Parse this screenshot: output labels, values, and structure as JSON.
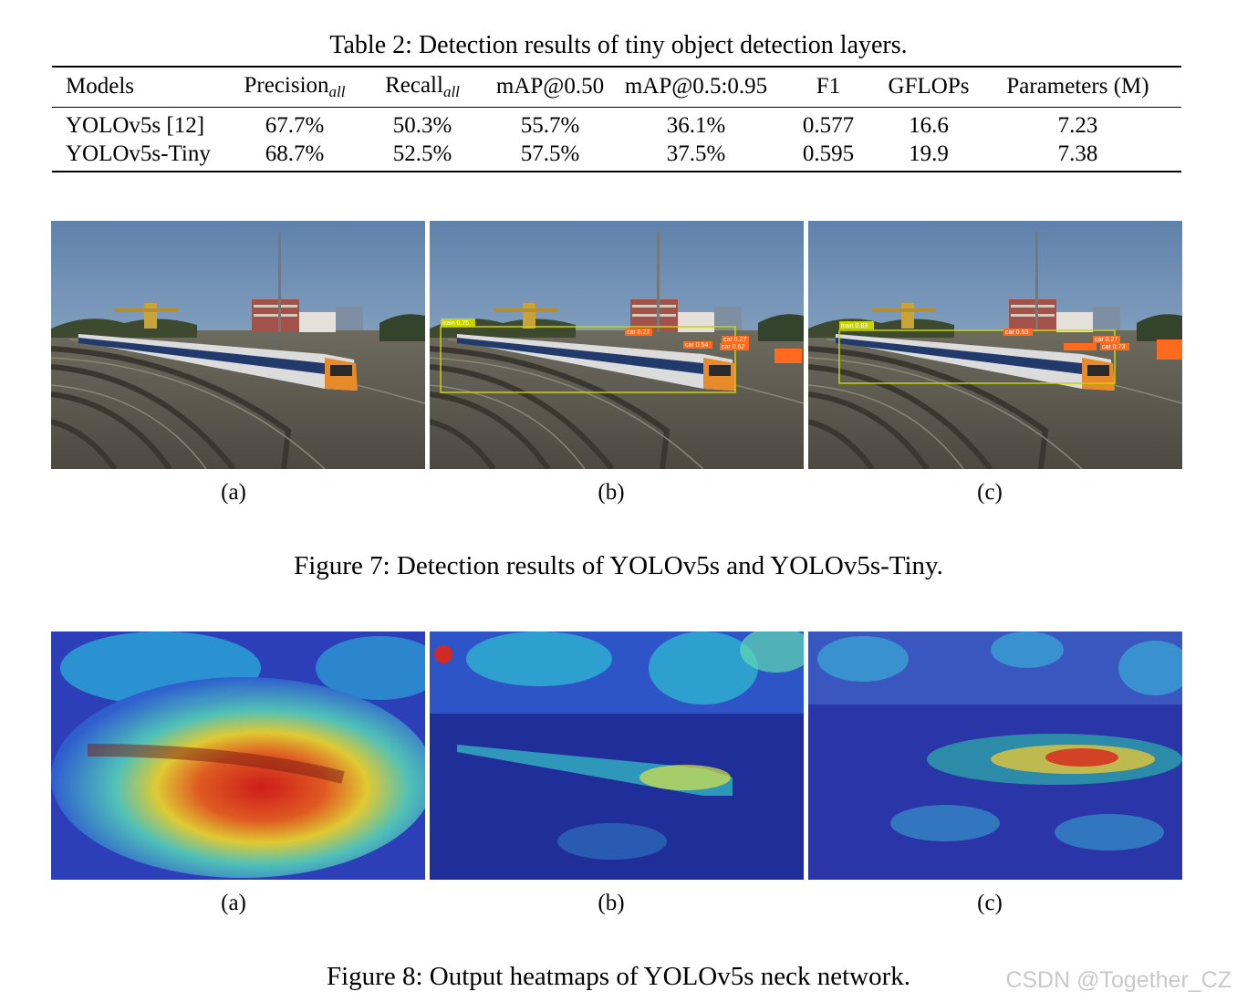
{
  "table": {
    "caption": "Table 2: Detection results of tiny object detection layers.",
    "headers": {
      "models": "Models",
      "precision": "Precision",
      "precision_sub": "all",
      "recall": "Recall",
      "recall_sub": "all",
      "map50": "mAP@0.50",
      "map5095": "mAP@0.5:0.95",
      "f1": "F1",
      "gflops": "GFLOPs",
      "params": "Parameters (M)"
    },
    "rows": [
      {
        "model": "YOLOv5s [12]",
        "precision": "67.7%",
        "recall": "50.3%",
        "map50": "55.7%",
        "map5095": "36.1%",
        "f1": "0.577",
        "gflops": "16.6",
        "params": "7.23"
      },
      {
        "model": "YOLOv5s-Tiny",
        "precision": "68.7%",
        "recall": "52.5%",
        "map50": "57.5%",
        "map5095": "37.5%",
        "f1": "0.595",
        "gflops": "19.9",
        "params": "7.38"
      }
    ]
  },
  "figure7": {
    "caption": "Figure 7: Detection results of YOLOv5s and YOLOv5s-Tiny.",
    "subfig_labels": [
      "(a)",
      "(b)",
      "(c)"
    ],
    "detections_b": [
      "train 0.75",
      "car 0.27",
      "car 0.27",
      "car 0.54",
      "car 0.62"
    ],
    "detections_c": [
      "train 0.83",
      "car 0.53",
      "car 0.27",
      "car 0.73"
    ]
  },
  "figure8": {
    "caption": "Figure 8: Output heatmaps of YOLOv5s neck network.",
    "subfig_labels": [
      "(a)",
      "(b)",
      "(c)"
    ]
  },
  "watermark": "CSDN @Together_CZ",
  "colors": {
    "detection_box_train": "#c8d400",
    "detection_box_car": "#ff6a1f",
    "sky": "#6f90b4"
  }
}
